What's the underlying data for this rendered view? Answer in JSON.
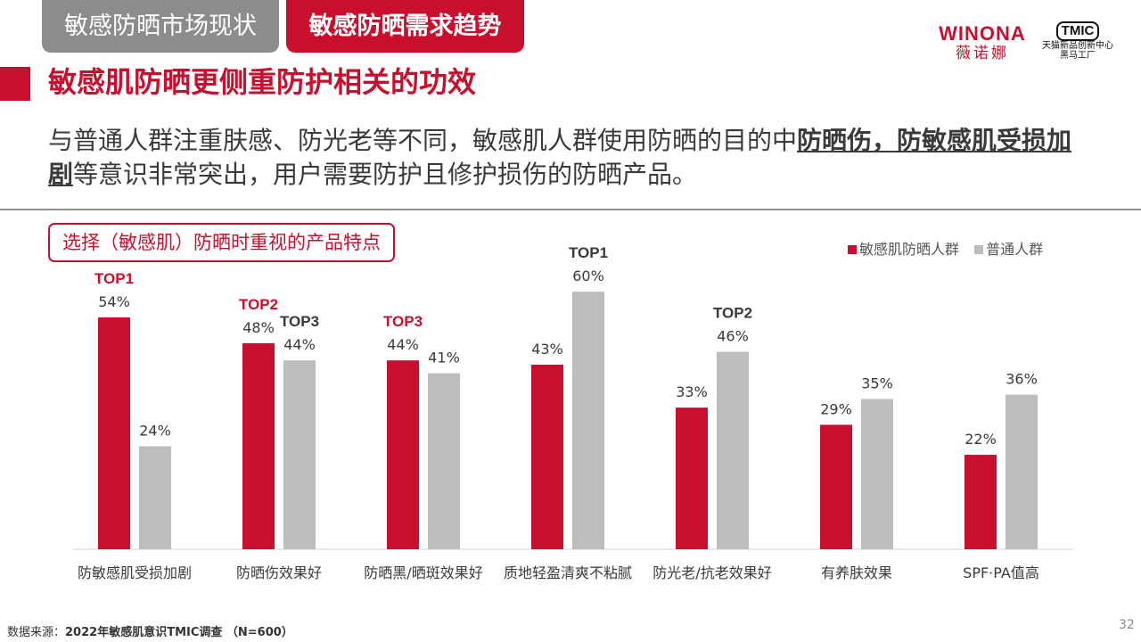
{
  "tabs": [
    "敏感防晒市场现状",
    "敏感防晒需求趋势"
  ],
  "logos": {
    "winona_en": "WINONA",
    "winona_cn": "薇诺娜",
    "tmic_badge": "TMIC",
    "tmic_line1": "天猫新品创新中心",
    "tmic_line2": "黑马工厂"
  },
  "section_title": "敏感肌防晒更侧重防护相关的功效",
  "description": {
    "part1": "与普通人群注重肤感、防光老等不同，敏感肌人群使用防晒的目的中",
    "highlight": "防晒伤，防敏感肌受损加剧",
    "part2": "等意识非常突出，用户需要防护且修护损伤的防晒产品。"
  },
  "subtitle": "选择（敏感肌）防晒时重视的产品特点",
  "colors": {
    "sensitive": "#c8102e",
    "normal": "#bdbdbd",
    "top_normal": "#3a3a3a"
  },
  "chart_data": {
    "type": "bar",
    "ylim": [
      0,
      70
    ],
    "categories": [
      "防敏感肌受损加剧",
      "防晒伤效果好",
      "防晒黑/晒斑效果好",
      "质地轻盈清爽不粘腻",
      "防光老/抗老效果好",
      "有养肤效果",
      "SPF·PA值高"
    ],
    "series": [
      {
        "name": "敏感肌防晒人群",
        "values": [
          54,
          48,
          44,
          43,
          33,
          29,
          22
        ],
        "value_labels": [
          "54%",
          "48%",
          "44%",
          "43%",
          "33%",
          "29%",
          "22%"
        ],
        "rank_labels": [
          "TOP1",
          "TOP2",
          "TOP3",
          "",
          "",
          "",
          ""
        ]
      },
      {
        "name": "普通人群",
        "values": [
          24,
          44,
          41,
          60,
          46,
          35,
          36
        ],
        "value_labels": [
          "24%",
          "44%",
          "41%",
          "60%",
          "46%",
          "35%",
          "36%"
        ],
        "rank_labels": [
          "",
          "TOP3",
          "",
          "TOP1",
          "TOP2",
          "",
          ""
        ]
      }
    ]
  },
  "source": {
    "label": "数据来源：",
    "detail": "2022年敏感肌意识TMIC调查 （N=600）"
  },
  "page_number": "32"
}
